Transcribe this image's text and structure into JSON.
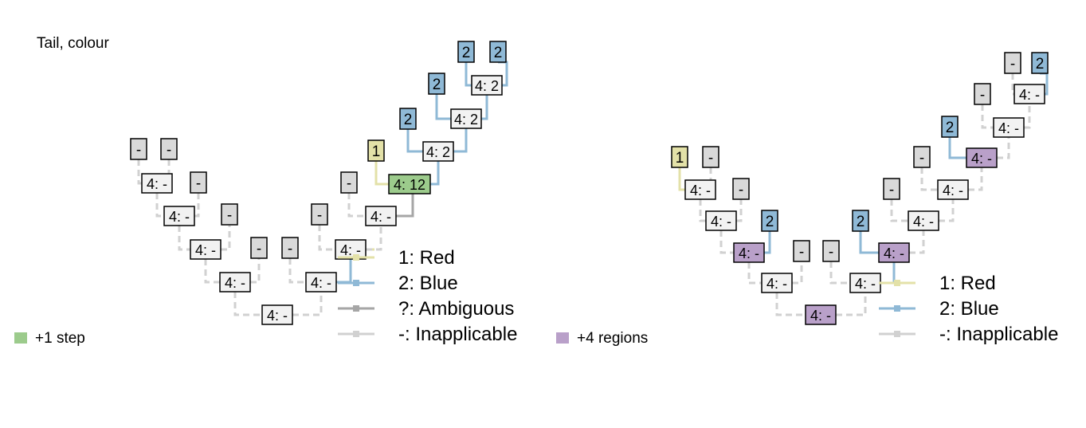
{
  "title": "Tail, colour",
  "colors": {
    "red": "#e3e1a8",
    "blue": "#8fb9d6",
    "ambiguous": "#a6a6a6",
    "inapplicable": "#d1d1d1",
    "node_fill": "#f2f2f2",
    "tip_inapplicable": "#d9d9d9",
    "step_highlight": "#9ccb8c",
    "region_highlight": "#b9a0c9"
  },
  "left_tree": {
    "note": {
      "label": "+1 step",
      "color": "#9ccb8c"
    },
    "legend": [
      {
        "label": "1: Red",
        "color": "#e3e1a8"
      },
      {
        "label": "2: Blue",
        "color": "#8fb9d6"
      },
      {
        "label": "?: Ambiguous",
        "color": "#a6a6a6"
      },
      {
        "label": "-: Inapplicable",
        "color": "#d1d1d1"
      }
    ],
    "tips": [
      "-",
      "-",
      "-",
      "-",
      "-",
      "-",
      "-",
      "-",
      "1",
      "2",
      "2",
      "2",
      "2"
    ],
    "internal_nodes": [
      "4: -",
      "4: -",
      "4: -",
      "4: -",
      "4: -",
      "4: -",
      "4: -",
      "4: -",
      "4: 12",
      "4: 2",
      "4: 2",
      "4: 2"
    ]
  },
  "right_tree": {
    "note": {
      "label": "+4 regions",
      "color": "#b9a0c9"
    },
    "legend": [
      {
        "label": "1: Red",
        "color": "#e3e1a8"
      },
      {
        "label": "2: Blue",
        "color": "#8fb9d6"
      },
      {
        "label": "-: Inapplicable",
        "color": "#d1d1d1"
      }
    ],
    "tips": [
      "1",
      "-",
      "-",
      "2",
      "-",
      "-",
      "2",
      "-",
      "-",
      "2",
      "-",
      "-",
      "2"
    ],
    "internal_nodes": [
      "4: -",
      "4: -",
      "4: -",
      "4: -",
      "4: -",
      "4: -",
      "4: -",
      "4: -",
      "4: -",
      "4: -",
      "4: -",
      "4: -"
    ]
  }
}
